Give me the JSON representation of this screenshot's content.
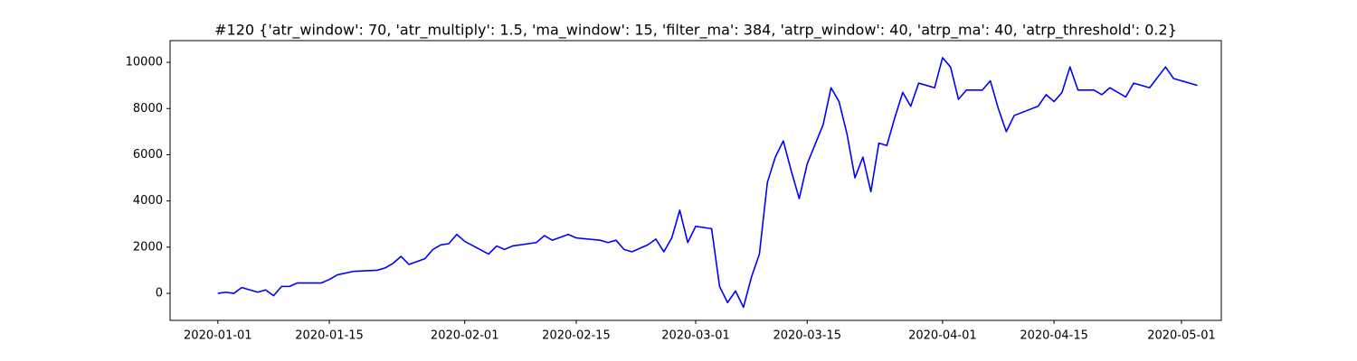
{
  "chart_data": {
    "type": "line",
    "title": "#120 {'atr_window': 70, 'atr_multiply': 1.5, 'ma_window': 15, 'filter_ma': 384, 'atrp_window': 40, 'atrp_ma': 40, 'atrp_threshold': 0.2}",
    "x": [
      "2020-01-01",
      "2020-01-02",
      "2020-01-03",
      "2020-01-04",
      "2020-01-06",
      "2020-01-07",
      "2020-01-08",
      "2020-01-09",
      "2020-01-10",
      "2020-01-11",
      "2020-01-14",
      "2020-01-15",
      "2020-01-16",
      "2020-01-18",
      "2020-01-21",
      "2020-01-22",
      "2020-01-23",
      "2020-01-24",
      "2020-01-25",
      "2020-01-27",
      "2020-01-28",
      "2020-01-29",
      "2020-01-30",
      "2020-01-31",
      "2020-02-01",
      "2020-02-04",
      "2020-02-05",
      "2020-02-06",
      "2020-02-07",
      "2020-02-10",
      "2020-02-11",
      "2020-02-12",
      "2020-02-14",
      "2020-02-15",
      "2020-02-18",
      "2020-02-19",
      "2020-02-20",
      "2020-02-21",
      "2020-02-22",
      "2020-02-24",
      "2020-02-25",
      "2020-02-26",
      "2020-02-27",
      "2020-02-28",
      "2020-02-29",
      "2020-03-01",
      "2020-03-03",
      "2020-03-04",
      "2020-03-05",
      "2020-03-06",
      "2020-03-07",
      "2020-03-08",
      "2020-03-09",
      "2020-03-10",
      "2020-03-11",
      "2020-03-12",
      "2020-03-13",
      "2020-03-14",
      "2020-03-15",
      "2020-03-17",
      "2020-03-18",
      "2020-03-19",
      "2020-03-20",
      "2020-03-21",
      "2020-03-22",
      "2020-03-23",
      "2020-03-24",
      "2020-03-25",
      "2020-03-26",
      "2020-03-27",
      "2020-03-28",
      "2020-03-29",
      "2020-03-31",
      "2020-04-01",
      "2020-04-02",
      "2020-04-03",
      "2020-04-04",
      "2020-04-06",
      "2020-04-07",
      "2020-04-08",
      "2020-04-09",
      "2020-04-10",
      "2020-04-13",
      "2020-04-14",
      "2020-04-15",
      "2020-04-16",
      "2020-04-17",
      "2020-04-18",
      "2020-04-20",
      "2020-04-21",
      "2020-04-22",
      "2020-04-24",
      "2020-04-25",
      "2020-04-27",
      "2020-04-29",
      "2020-04-30",
      "2020-05-03"
    ],
    "series": [
      {
        "color": "blue",
        "values": [
          0,
          50,
          0,
          250,
          50,
          150,
          -100,
          300,
          300,
          450,
          450,
          600,
          800,
          950,
          1000,
          1100,
          1300,
          1600,
          1250,
          1500,
          1900,
          2100,
          2150,
          2550,
          2250,
          1700,
          2050,
          1900,
          2050,
          2200,
          2500,
          2300,
          2550,
          2400,
          2300,
          2200,
          2300,
          1900,
          1800,
          2100,
          2350,
          1800,
          2400,
          3600,
          2200,
          2900,
          2800,
          300,
          -400,
          100,
          -600,
          700,
          1700,
          4800,
          5900,
          6600,
          5300,
          4100,
          5600,
          7300,
          8900,
          8300,
          6900,
          5000,
          5900,
          4400,
          6500,
          6400,
          7600,
          8700,
          8100,
          9100,
          8900,
          10200,
          9800,
          8400,
          8800,
          8800,
          9200,
          8000,
          7000,
          7700,
          8100,
          8600,
          8300,
          8700,
          9800,
          8800,
          8800,
          8600,
          8900,
          8500,
          9100,
          8900,
          9800,
          9300,
          9000
        ]
      }
    ],
    "xlim": [
      "2019-12-26",
      "2020-05-06"
    ],
    "xticks": [
      "2020-01-01",
      "2020-01-15",
      "2020-02-01",
      "2020-02-15",
      "2020-03-01",
      "2020-03-15",
      "2020-04-01",
      "2020-04-15",
      "2020-05-01"
    ],
    "ylim": [
      -1170,
      10940
    ],
    "yticks": [
      0,
      2000,
      4000,
      6000,
      8000,
      10000
    ]
  }
}
